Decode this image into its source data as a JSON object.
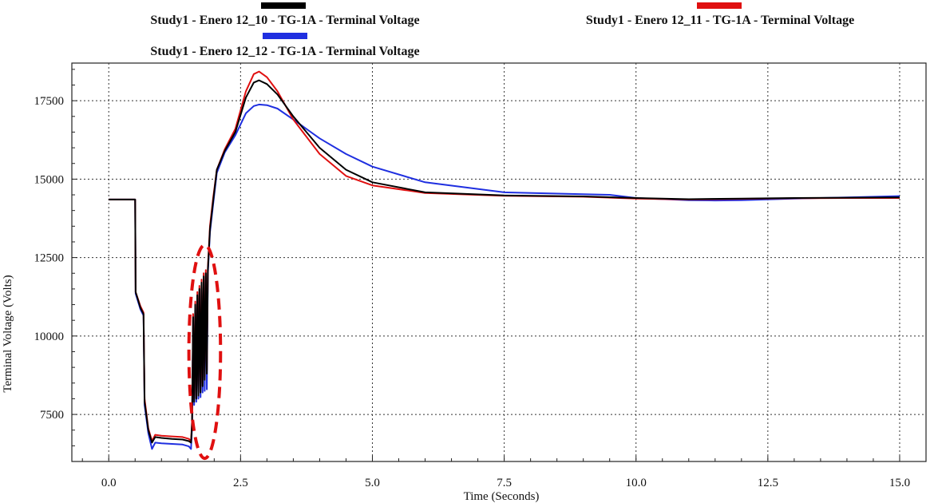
{
  "chart_data": {
    "type": "line",
    "title": "",
    "xlabel": "Time (Seconds)",
    "ylabel": "Terminal Voltage (Volts)",
    "xlim": [
      -0.7,
      15.5
    ],
    "ylim": [
      6000,
      18700
    ],
    "x_ticks": [
      0.0,
      2.5,
      5.0,
      7.5,
      10.0,
      12.5,
      15.0
    ],
    "x_tick_labels": [
      "0.0",
      "2.5",
      "5.0",
      "7.5",
      "10.0",
      "12.5",
      "15.0"
    ],
    "y_ticks": [
      7500,
      10000,
      12500,
      15000,
      17500
    ],
    "y_tick_labels": [
      "7500",
      "10000",
      "12500",
      "15000",
      "17500"
    ],
    "grid": true,
    "legend_position": "top",
    "series": [
      {
        "name": "Study1 - Enero 12_10 - TG-1A - Terminal Voltage",
        "color": "#000000",
        "points": [
          [
            0.0,
            14350
          ],
          [
            0.5,
            14350
          ],
          [
            0.51,
            11400
          ],
          [
            0.6,
            10900
          ],
          [
            0.66,
            10700
          ],
          [
            0.68,
            7900
          ],
          [
            0.75,
            7000
          ],
          [
            0.82,
            6600
          ],
          [
            0.88,
            6780
          ],
          [
            1.0,
            6750
          ],
          [
            1.2,
            6720
          ],
          [
            1.4,
            6700
          ],
          [
            1.52,
            6650
          ],
          [
            1.56,
            6600
          ],
          [
            1.58,
            7200
          ],
          [
            1.6,
            10600
          ],
          [
            1.62,
            7900
          ],
          [
            1.64,
            11000
          ],
          [
            1.66,
            8000
          ],
          [
            1.68,
            11300
          ],
          [
            1.7,
            8100
          ],
          [
            1.72,
            11500
          ],
          [
            1.74,
            8200
          ],
          [
            1.76,
            11700
          ],
          [
            1.78,
            8400
          ],
          [
            1.8,
            11900
          ],
          [
            1.82,
            8600
          ],
          [
            1.84,
            12000
          ],
          [
            1.86,
            8800
          ],
          [
            1.88,
            12100
          ],
          [
            1.92,
            13400
          ],
          [
            1.98,
            14300
          ],
          [
            2.05,
            15300
          ],
          [
            2.2,
            15900
          ],
          [
            2.4,
            16500
          ],
          [
            2.6,
            17600
          ],
          [
            2.75,
            18080
          ],
          [
            2.85,
            18150
          ],
          [
            3.0,
            18030
          ],
          [
            3.2,
            17700
          ],
          [
            3.5,
            17000
          ],
          [
            4.0,
            16000
          ],
          [
            4.5,
            15300
          ],
          [
            5.0,
            14900
          ],
          [
            6.0,
            14580
          ],
          [
            7.5,
            14480
          ],
          [
            9.0,
            14450
          ],
          [
            10.0,
            14400
          ],
          [
            11.0,
            14360
          ],
          [
            12.0,
            14380
          ],
          [
            13.0,
            14400
          ],
          [
            14.0,
            14410
          ],
          [
            15.0,
            14420
          ]
        ]
      },
      {
        "name": "Study1 - Enero 12_11 - TG-1A - Terminal Voltage",
        "color": "#e01010",
        "points": [
          [
            0.0,
            14350
          ],
          [
            0.5,
            14350
          ],
          [
            0.51,
            11400
          ],
          [
            0.6,
            10950
          ],
          [
            0.66,
            10750
          ],
          [
            0.68,
            8000
          ],
          [
            0.75,
            7050
          ],
          [
            0.82,
            6650
          ],
          [
            0.88,
            6850
          ],
          [
            1.0,
            6820
          ],
          [
            1.2,
            6800
          ],
          [
            1.4,
            6780
          ],
          [
            1.52,
            6720
          ],
          [
            1.56,
            6650
          ],
          [
            1.58,
            7300
          ],
          [
            1.6,
            10700
          ],
          [
            1.62,
            8000
          ],
          [
            1.64,
            11100
          ],
          [
            1.66,
            8100
          ],
          [
            1.68,
            11400
          ],
          [
            1.7,
            8200
          ],
          [
            1.72,
            11600
          ],
          [
            1.74,
            8300
          ],
          [
            1.76,
            11800
          ],
          [
            1.78,
            8500
          ],
          [
            1.8,
            12000
          ],
          [
            1.82,
            8700
          ],
          [
            1.84,
            12100
          ],
          [
            1.86,
            8900
          ],
          [
            1.88,
            12200
          ],
          [
            1.92,
            13500
          ],
          [
            1.98,
            14400
          ],
          [
            2.05,
            15300
          ],
          [
            2.2,
            15950
          ],
          [
            2.4,
            16600
          ],
          [
            2.6,
            17800
          ],
          [
            2.75,
            18350
          ],
          [
            2.85,
            18430
          ],
          [
            3.0,
            18250
          ],
          [
            3.2,
            17800
          ],
          [
            3.5,
            16900
          ],
          [
            4.0,
            15800
          ],
          [
            4.5,
            15100
          ],
          [
            5.0,
            14800
          ],
          [
            6.0,
            14560
          ],
          [
            7.5,
            14470
          ],
          [
            9.0,
            14440
          ],
          [
            10.0,
            14380
          ],
          [
            11.0,
            14350
          ],
          [
            12.0,
            14370
          ],
          [
            13.0,
            14390
          ],
          [
            14.0,
            14400
          ],
          [
            15.0,
            14400
          ]
        ]
      },
      {
        "name": "Study1 - Enero 12_12 - TG-1A - Terminal Voltage",
        "color": "#1f2fe0",
        "points": [
          [
            0.0,
            14350
          ],
          [
            0.5,
            14350
          ],
          [
            0.51,
            11350
          ],
          [
            0.6,
            10850
          ],
          [
            0.66,
            10650
          ],
          [
            0.68,
            7800
          ],
          [
            0.75,
            6900
          ],
          [
            0.82,
            6400
          ],
          [
            0.88,
            6600
          ],
          [
            1.0,
            6580
          ],
          [
            1.2,
            6560
          ],
          [
            1.4,
            6540
          ],
          [
            1.52,
            6480
          ],
          [
            1.56,
            6400
          ],
          [
            1.58,
            7100
          ],
          [
            1.6,
            10500
          ],
          [
            1.62,
            7800
          ],
          [
            1.64,
            10900
          ],
          [
            1.66,
            7900
          ],
          [
            1.68,
            11200
          ],
          [
            1.7,
            8000
          ],
          [
            1.72,
            11400
          ],
          [
            1.74,
            8050
          ],
          [
            1.76,
            11600
          ],
          [
            1.78,
            8200
          ],
          [
            1.8,
            11800
          ],
          [
            1.82,
            8250
          ],
          [
            1.84,
            11900
          ],
          [
            1.86,
            8300
          ],
          [
            1.88,
            12000
          ],
          [
            1.92,
            13300
          ],
          [
            1.98,
            14200
          ],
          [
            2.05,
            15200
          ],
          [
            2.2,
            15850
          ],
          [
            2.4,
            16400
          ],
          [
            2.6,
            17100
          ],
          [
            2.75,
            17330
          ],
          [
            2.85,
            17380
          ],
          [
            3.0,
            17360
          ],
          [
            3.2,
            17250
          ],
          [
            3.5,
            16900
          ],
          [
            4.0,
            16300
          ],
          [
            4.5,
            15800
          ],
          [
            5.0,
            15400
          ],
          [
            6.0,
            14900
          ],
          [
            7.5,
            14580
          ],
          [
            9.0,
            14520
          ],
          [
            9.5,
            14500
          ],
          [
            10.0,
            14400
          ],
          [
            11.0,
            14330
          ],
          [
            11.5,
            14320
          ],
          [
            12.0,
            14330
          ],
          [
            13.0,
            14380
          ],
          [
            14.0,
            14420
          ],
          [
            15.0,
            14460
          ]
        ]
      }
    ],
    "annotations": [
      {
        "type": "dashed-ellipse",
        "color": "#e01010",
        "x_center": 1.82,
        "y_center": 9500,
        "x_radius": 0.3,
        "y_radius": 3400
      }
    ]
  }
}
